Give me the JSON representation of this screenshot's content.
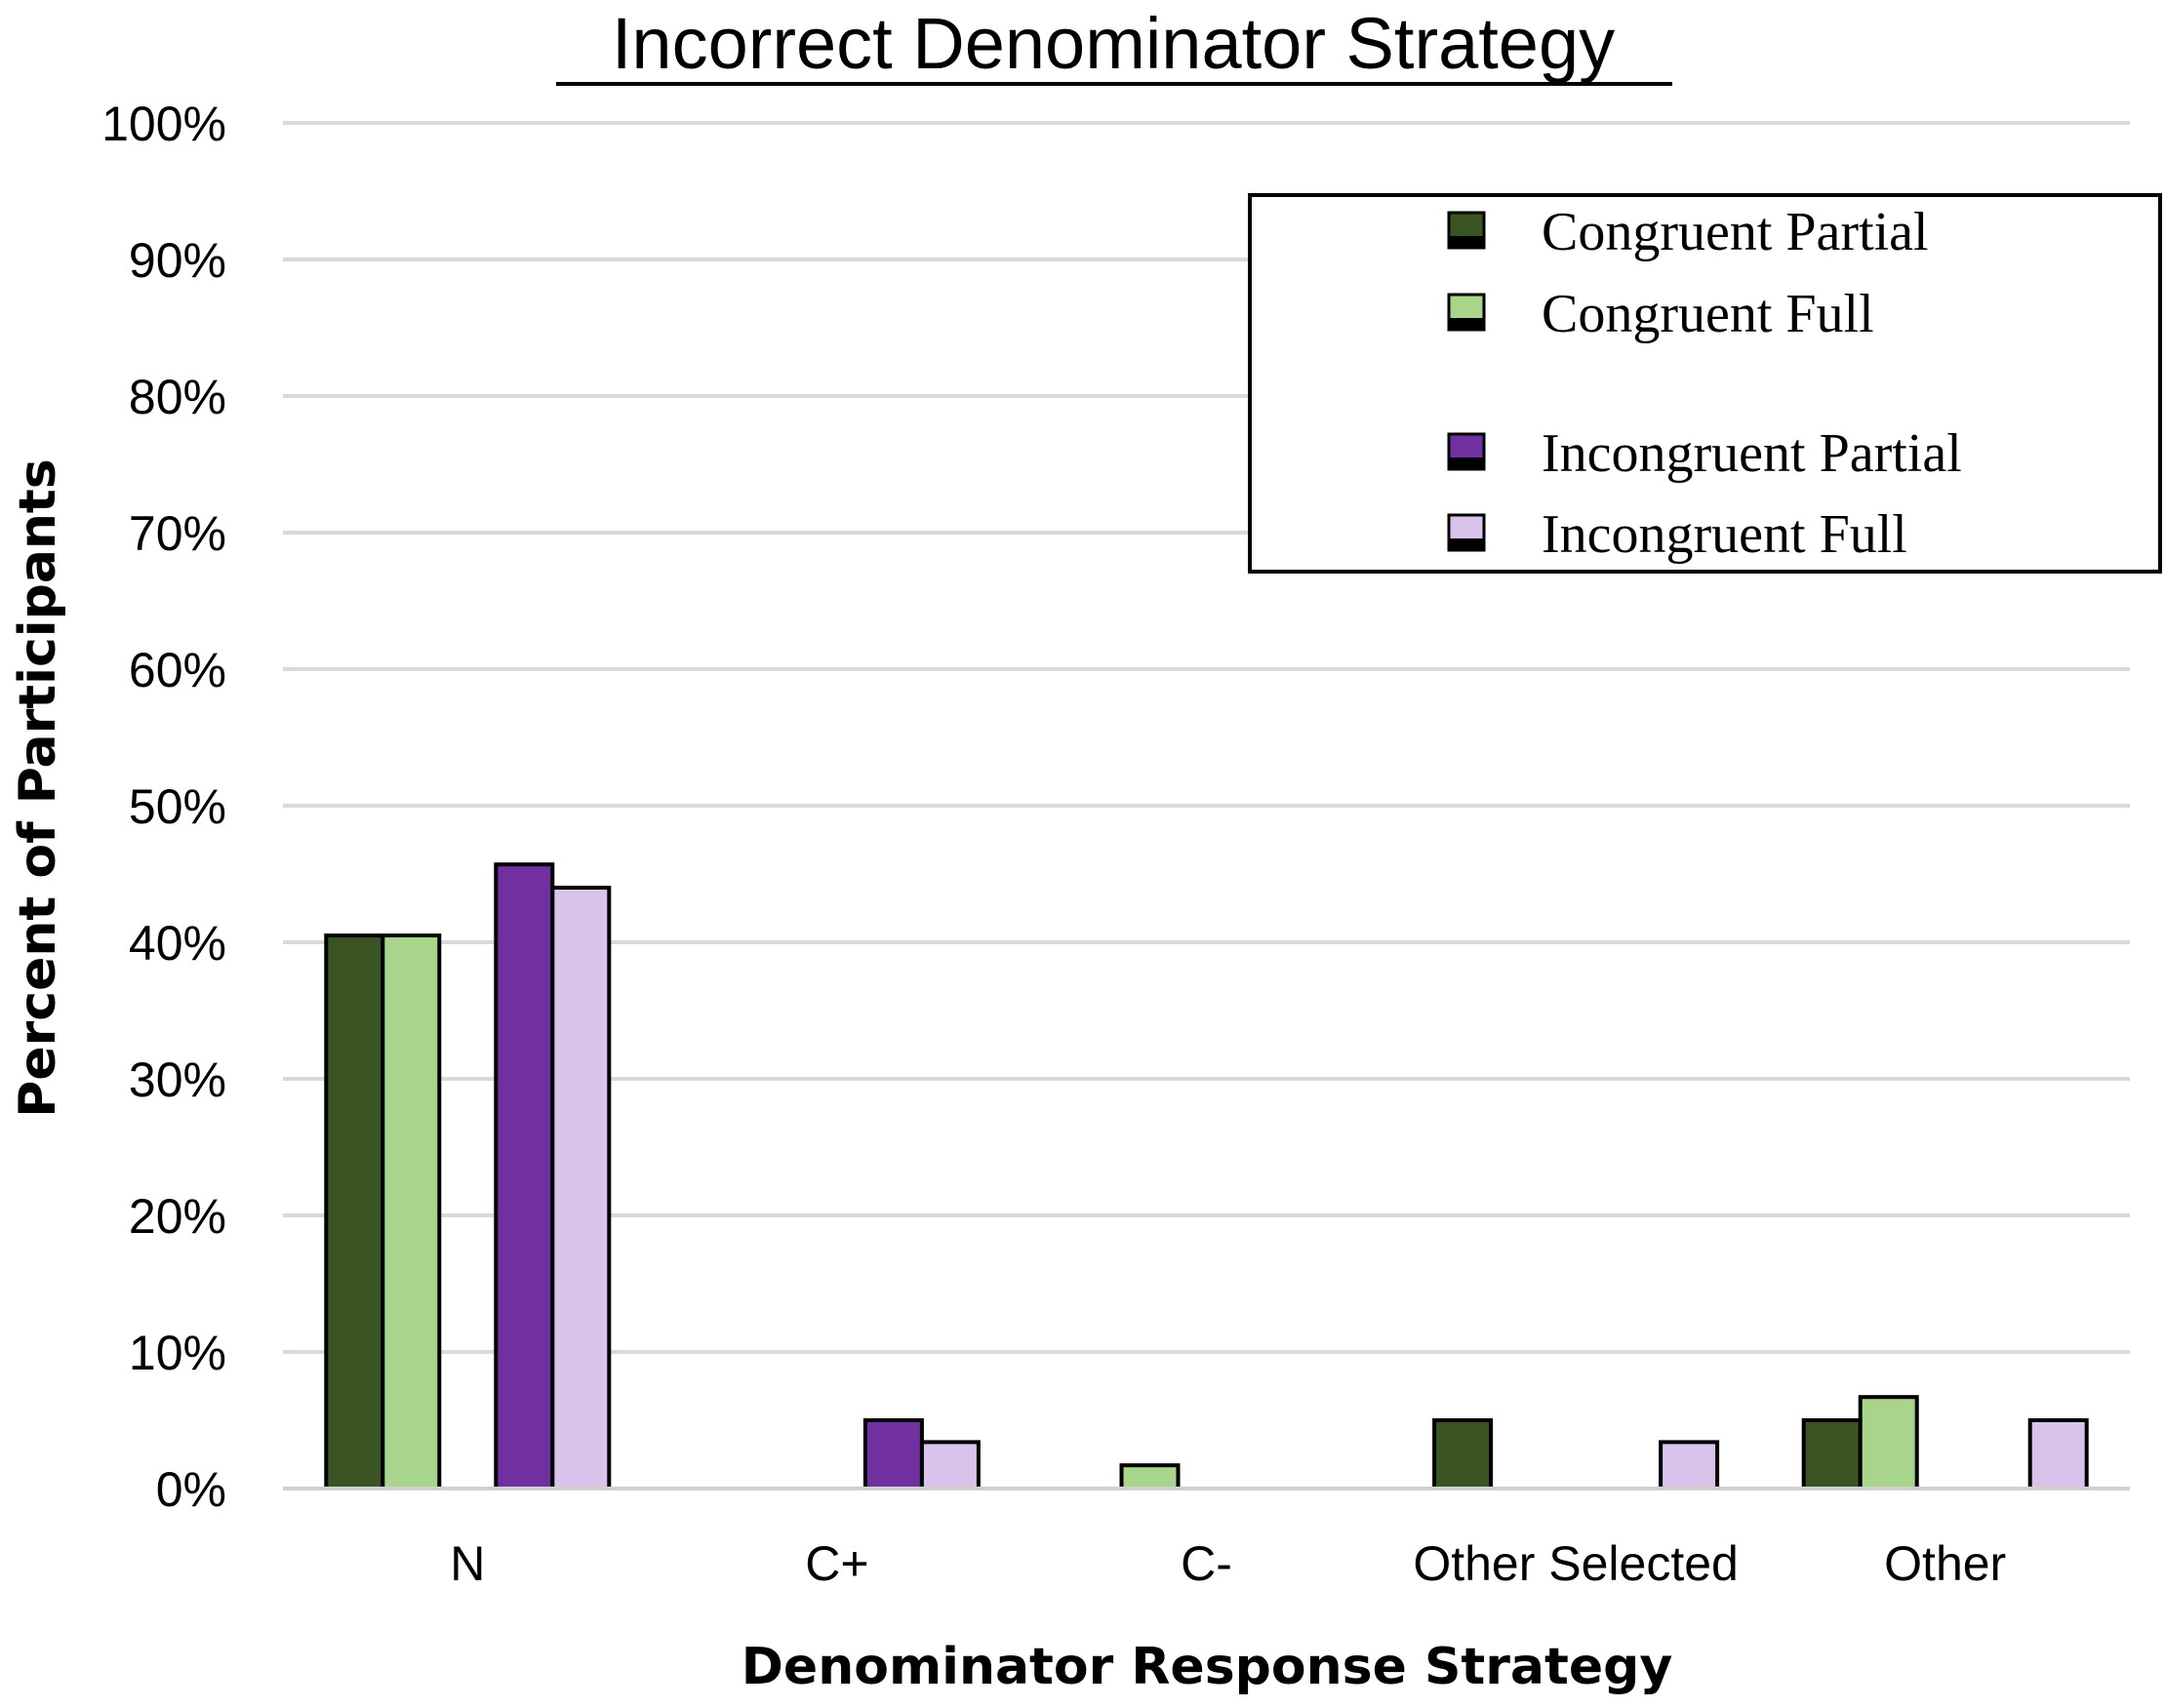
{
  "chart_data": {
    "type": "bar",
    "title": "Incorrect Denominator Strategy",
    "xlabel": "Denominator Response Strategy",
    "ylabel": "Percent of Participants",
    "categories": [
      "N",
      "C+",
      "C-",
      "Other Selected",
      "Other"
    ],
    "ylim": [
      0,
      100
    ],
    "yticks": [
      "0%",
      "10%",
      "20%",
      "30%",
      "40%",
      "50%",
      "60%",
      "70%",
      "80%",
      "90%",
      "100%"
    ],
    "grid": true,
    "legend_position": "top-right",
    "series": [
      {
        "name": "Congruent Partial",
        "color": "#3a5424",
        "values": [
          40.5,
          0,
          0,
          5,
          5
        ]
      },
      {
        "name": "Congruent Full",
        "color": "#a8d48c",
        "values": [
          40.5,
          0,
          1.7,
          0,
          6.7
        ]
      },
      {
        "name": "Incongruent Partial",
        "color": "#7030a0",
        "values": [
          45.7,
          5,
          0,
          0,
          0
        ]
      },
      {
        "name": "Incongruent Full",
        "color": "#d9c3eb",
        "values": [
          44,
          3.4,
          0,
          3.4,
          5
        ]
      }
    ]
  }
}
